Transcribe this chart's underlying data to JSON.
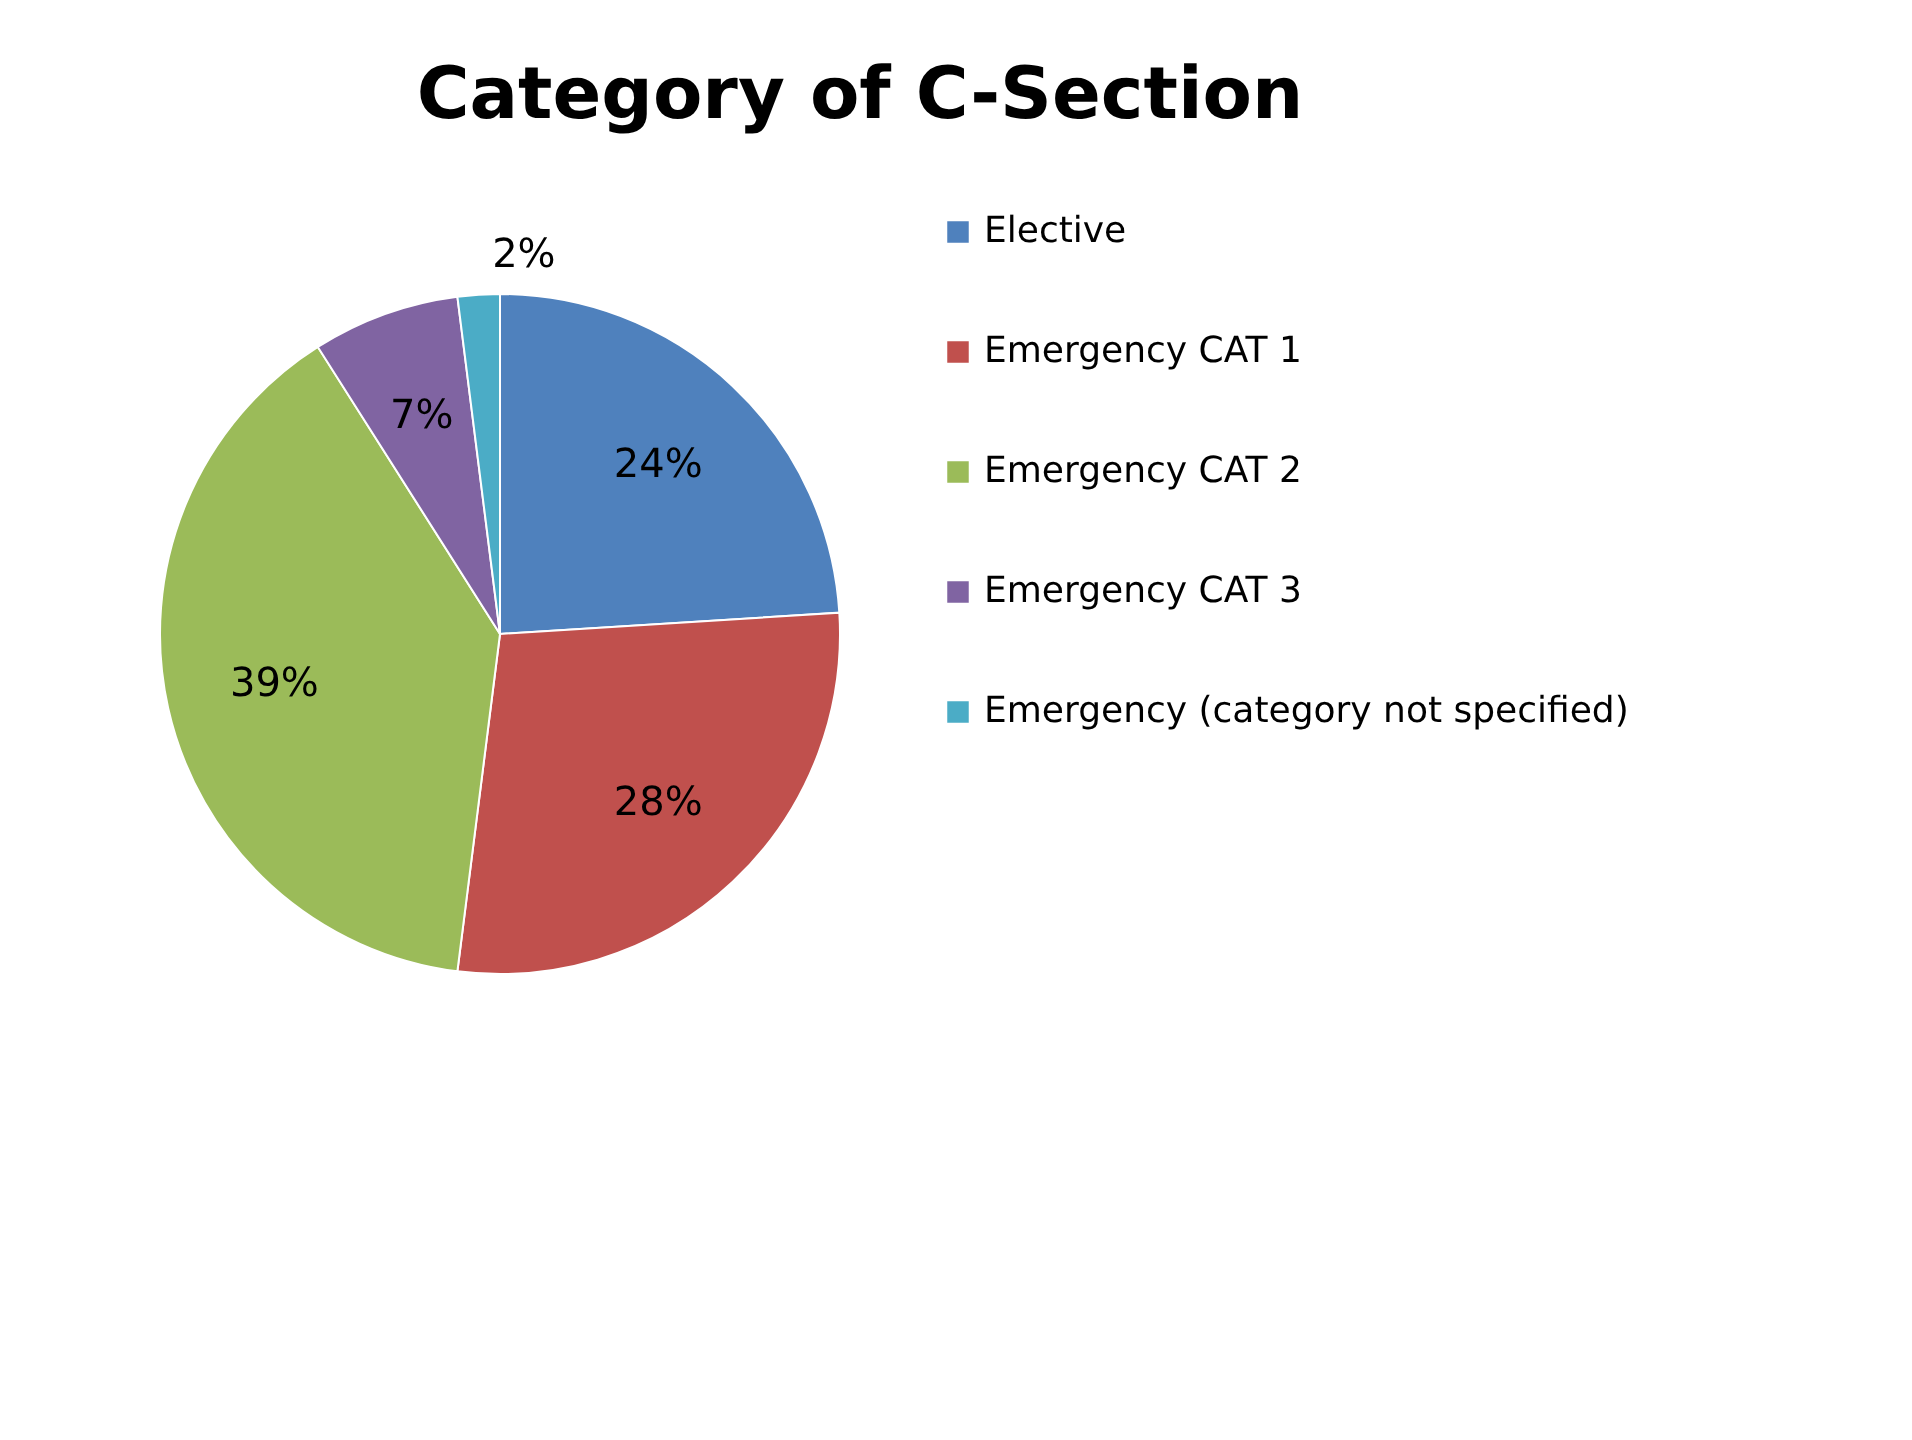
{
  "chart_data": {
    "type": "pie",
    "title": "Category of C-Section",
    "categories": [
      "Elective",
      "Emergency CAT 1",
      "Emergency CAT 2",
      "Emergency CAT 3",
      "Emergency (category not specified)"
    ],
    "values": [
      24,
      28,
      39,
      7,
      2
    ],
    "colors": [
      "#4f81bd",
      "#c0504d",
      "#9bbb59",
      "#8064a2",
      "#4bacc6"
    ],
    "value_labels": [
      "24%",
      "28%",
      "39%",
      "7%",
      "2%"
    ],
    "legend": "right"
  }
}
